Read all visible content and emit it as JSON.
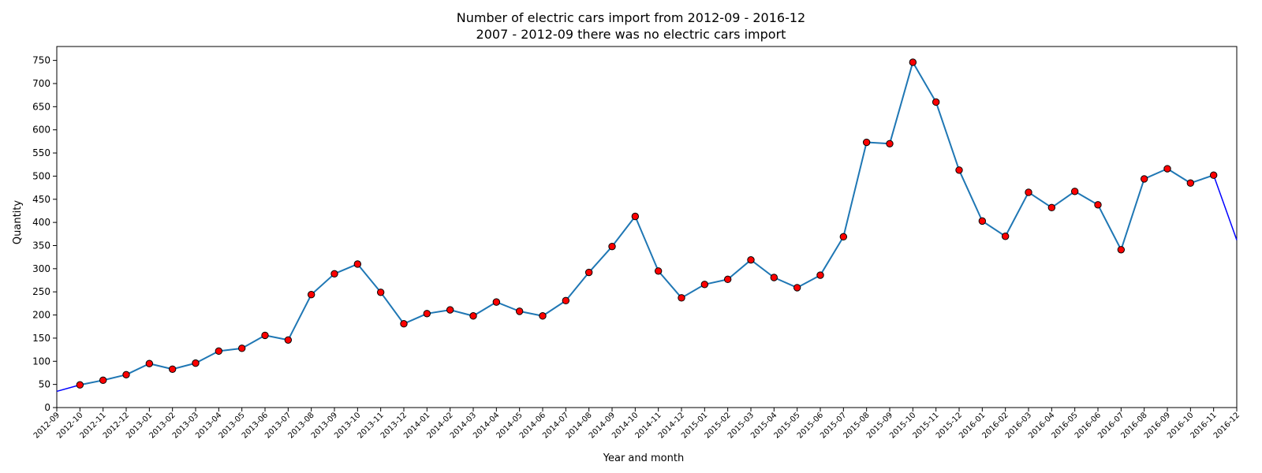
{
  "chart_data": {
    "type": "line",
    "title": "Number of electric cars import from 2012-09 - 2016-12",
    "subtitle": "2007 - 2012-09 there was no electric cars import",
    "xlabel": "Year and month",
    "ylabel": "Quantity",
    "ylim": [
      0,
      780
    ],
    "yticks": [
      0,
      50,
      100,
      150,
      200,
      250,
      300,
      350,
      400,
      450,
      500,
      550,
      600,
      650,
      700,
      750
    ],
    "grid": false,
    "legend": "none",
    "categories": [
      "2012-09",
      "2012-10",
      "2012-11",
      "2012-12",
      "2013-01",
      "2013-02",
      "2013-03",
      "2013-04",
      "2013-05",
      "2013-06",
      "2013-07",
      "2013-08",
      "2013-09",
      "2013-10",
      "2013-11",
      "2013-12",
      "2014-01",
      "2014-02",
      "2014-03",
      "2014-04",
      "2014-05",
      "2014-06",
      "2014-07",
      "2014-08",
      "2014-09",
      "2014-10",
      "2014-11",
      "2014-12",
      "2015-01",
      "2015-02",
      "2015-03",
      "2015-04",
      "2015-05",
      "2015-06",
      "2015-07",
      "2015-08",
      "2015-09",
      "2015-10",
      "2015-11",
      "2015-12",
      "2016-01",
      "2016-02",
      "2016-03",
      "2016-04",
      "2016-05",
      "2016-06",
      "2016-07",
      "2016-08",
      "2016-09",
      "2016-10",
      "2016-11",
      "2016-12"
    ],
    "values": [
      35,
      49,
      59,
      71,
      95,
      83,
      96,
      122,
      128,
      156,
      146,
      244,
      289,
      310,
      249,
      181,
      203,
      211,
      198,
      228,
      208,
      198,
      231,
      292,
      348,
      413,
      295,
      237,
      266,
      277,
      319,
      281,
      259,
      286,
      369,
      573,
      570,
      746,
      660,
      513,
      403,
      370,
      465,
      432,
      467,
      438,
      341,
      494,
      516,
      485,
      502,
      362
    ],
    "colors": {
      "line": "#1f77b4",
      "edge_line": "#0000ff",
      "marker_fill": "#ff0000",
      "marker_edge": "#000000"
    }
  }
}
